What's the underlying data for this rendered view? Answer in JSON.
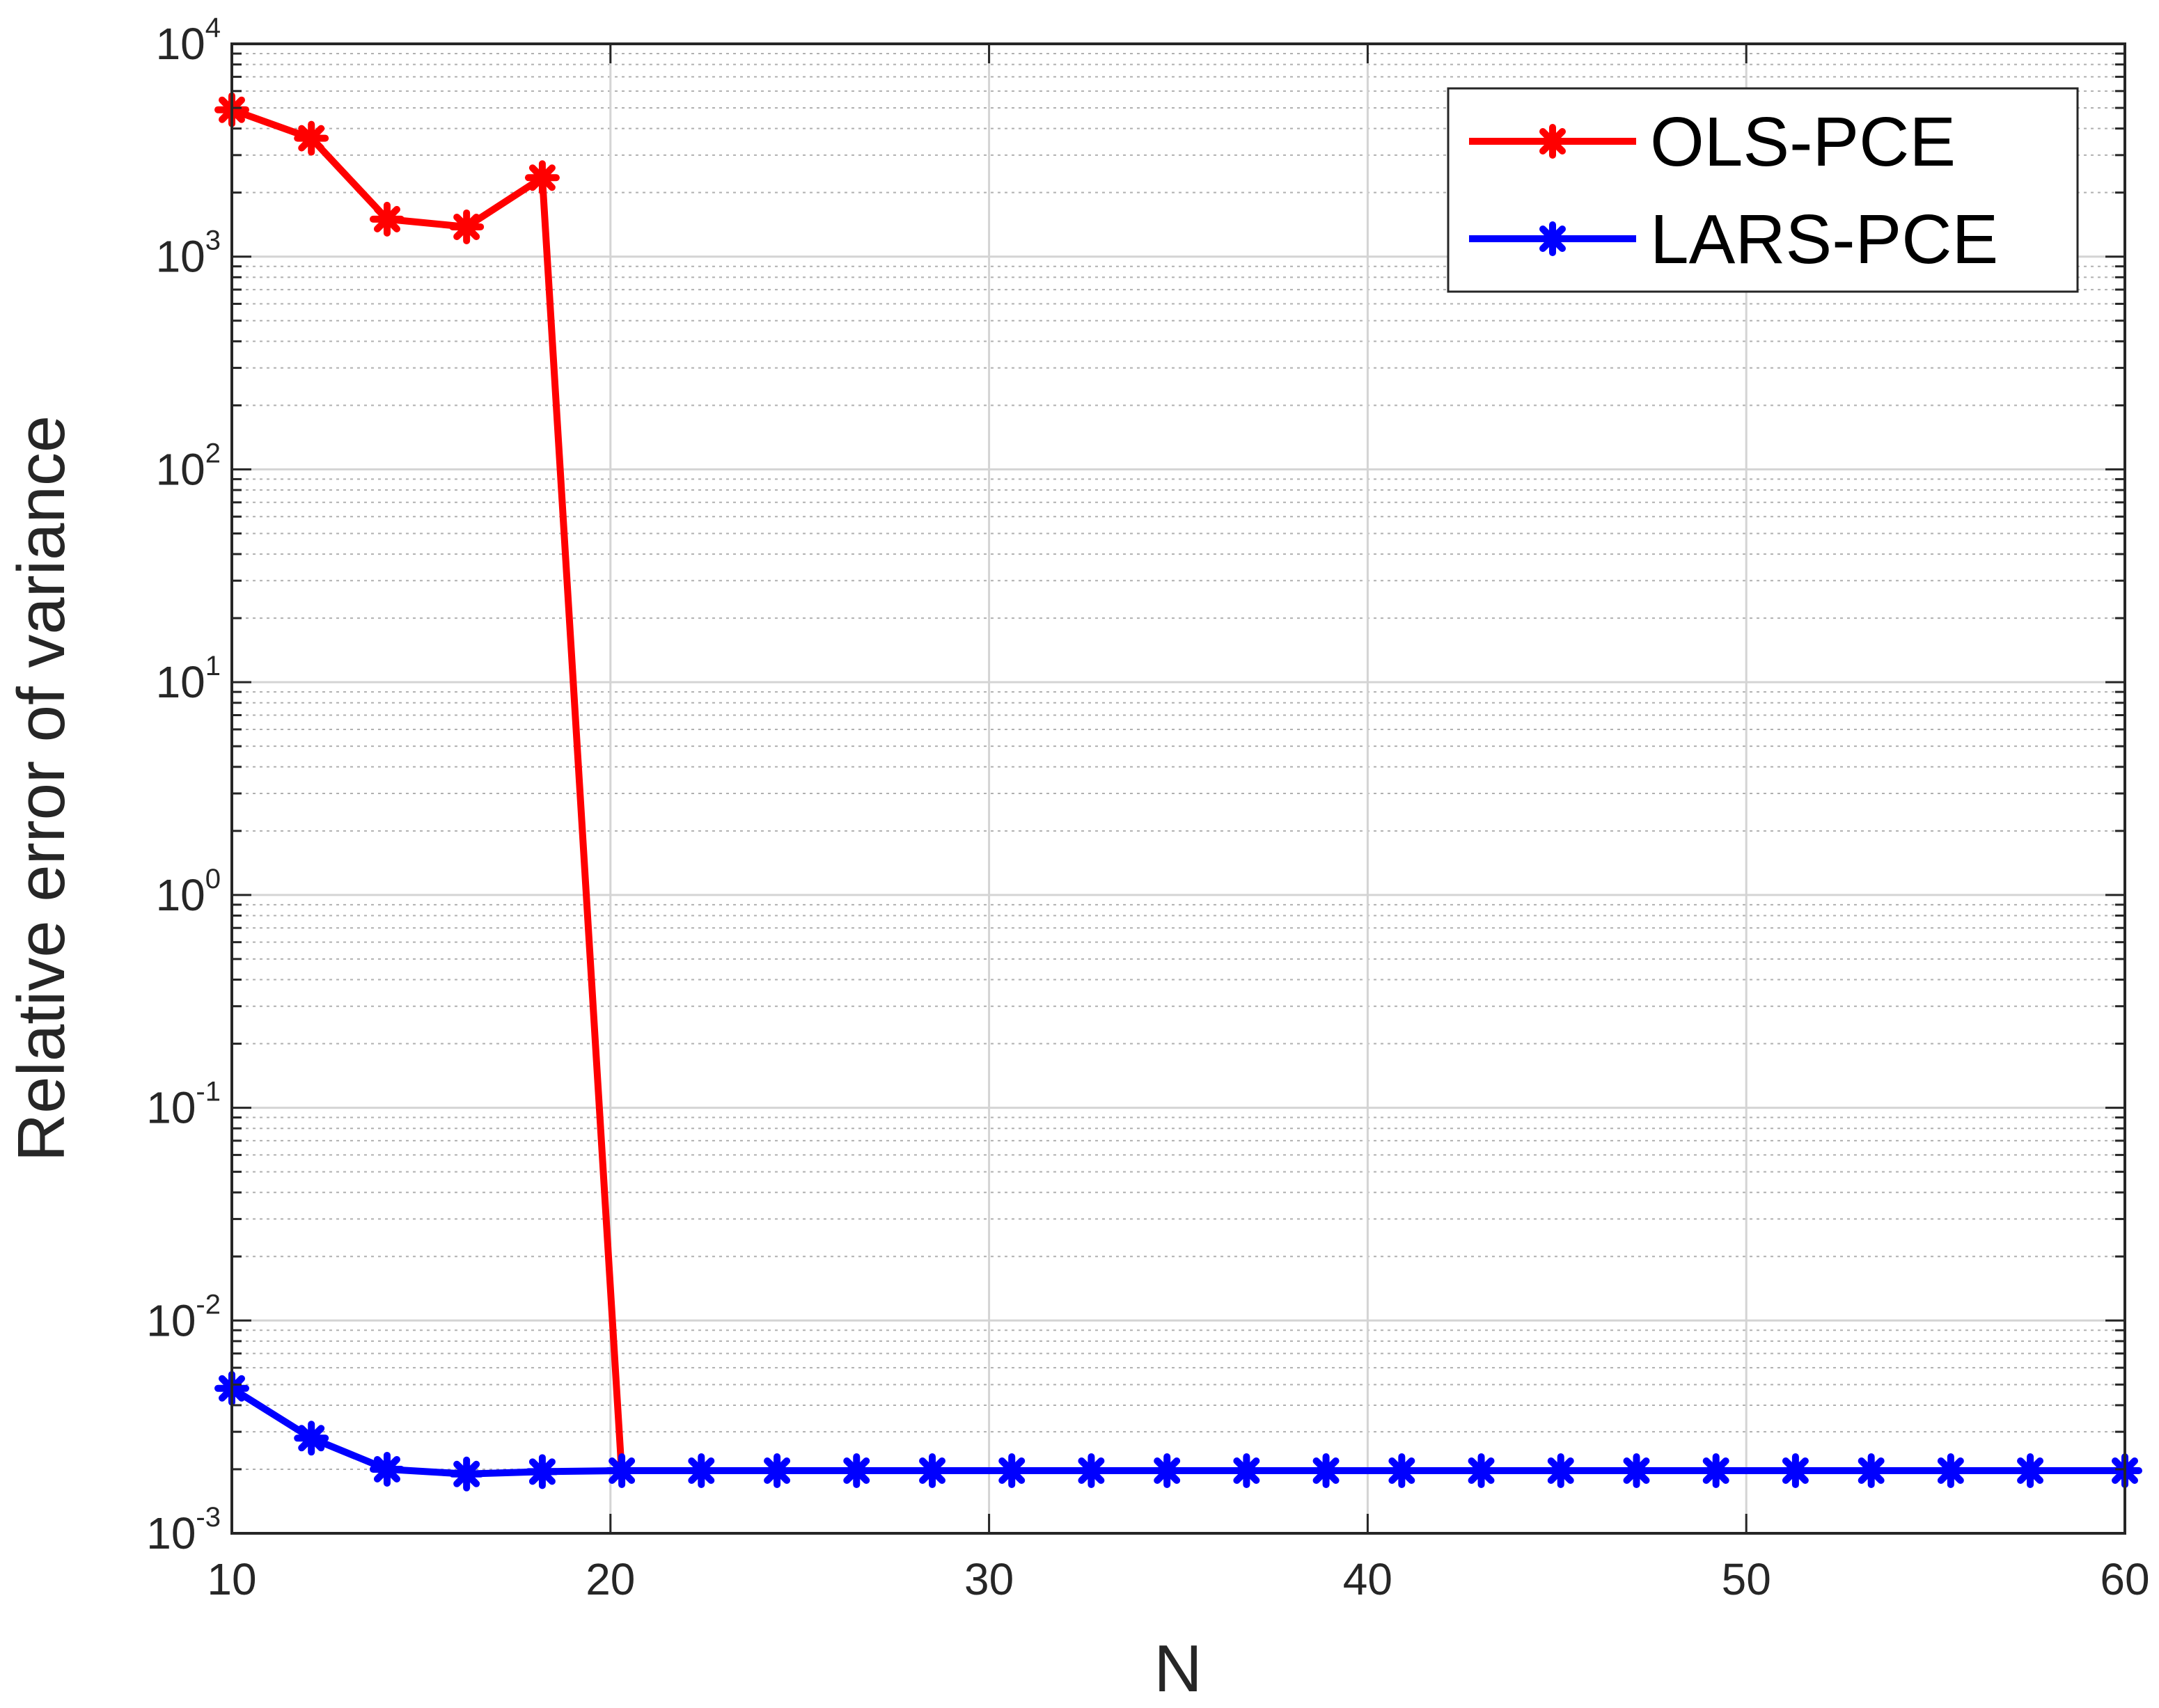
{
  "chart_data": {
    "type": "line",
    "title": "",
    "xlabel": "N",
    "ylabel": "Relative error of variance",
    "xlim": [
      10,
      60
    ],
    "ylim": [
      0.001,
      10000
    ],
    "yscale": "log",
    "grid": true,
    "legend_position": "top-right",
    "xticks": [
      10,
      20,
      30,
      40,
      50,
      60
    ],
    "xtick_labels": [
      "10",
      "20",
      "30",
      "40",
      "50",
      "60"
    ],
    "yticks": [
      {
        "value": 0.001,
        "base": "10",
        "exp": "-3"
      },
      {
        "value": 0.01,
        "base": "10",
        "exp": "-2"
      },
      {
        "value": 0.1,
        "base": "10",
        "exp": "-1"
      },
      {
        "value": 1,
        "base": "10",
        "exp": "0"
      },
      {
        "value": 10,
        "base": "10",
        "exp": "1"
      },
      {
        "value": 100,
        "base": "10",
        "exp": "2"
      },
      {
        "value": 1000,
        "base": "10",
        "exp": "3"
      },
      {
        "value": 10000,
        "base": "10",
        "exp": "4"
      }
    ],
    "series": [
      {
        "name": "OLS-PCE",
        "color": "#ff0000",
        "marker": "asterisk",
        "points": [
          {
            "x": 10,
            "y": 4900
          },
          {
            "x": 12.1,
            "y": 3600
          },
          {
            "x": 14.1,
            "y": 1500
          },
          {
            "x": 16.2,
            "y": 1380
          },
          {
            "x": 18.2,
            "y": 2350
          },
          {
            "x": 20.3,
            "y": 0.0019,
            "marker": false
          }
        ]
      },
      {
        "name": "LARS-PCE",
        "color": "#0000ff",
        "marker": "asterisk",
        "points": [
          {
            "x": 10,
            "y": 0.0048
          },
          {
            "x": 12.1,
            "y": 0.0028
          },
          {
            "x": 14.1,
            "y": 0.002
          },
          {
            "x": 16.2,
            "y": 0.0019
          },
          {
            "x": 18.2,
            "y": 0.00195
          },
          {
            "x": 20.3,
            "y": 0.00197
          },
          {
            "x": 22.4,
            "y": 0.00197
          },
          {
            "x": 24.4,
            "y": 0.00197
          },
          {
            "x": 26.5,
            "y": 0.00197
          },
          {
            "x": 28.5,
            "y": 0.00197
          },
          {
            "x": 30.6,
            "y": 0.00197
          },
          {
            "x": 32.7,
            "y": 0.00197
          },
          {
            "x": 34.7,
            "y": 0.00197
          },
          {
            "x": 36.8,
            "y": 0.00197
          },
          {
            "x": 38.9,
            "y": 0.00197
          },
          {
            "x": 40.9,
            "y": 0.00197
          },
          {
            "x": 43.0,
            "y": 0.00197
          },
          {
            "x": 45.1,
            "y": 0.00197
          },
          {
            "x": 47.1,
            "y": 0.00197
          },
          {
            "x": 49.2,
            "y": 0.00197
          },
          {
            "x": 51.3,
            "y": 0.00197
          },
          {
            "x": 53.3,
            "y": 0.00197
          },
          {
            "x": 55.4,
            "y": 0.00197
          },
          {
            "x": 57.5,
            "y": 0.00197
          },
          {
            "x": 60,
            "y": 0.00197
          }
        ]
      }
    ]
  }
}
